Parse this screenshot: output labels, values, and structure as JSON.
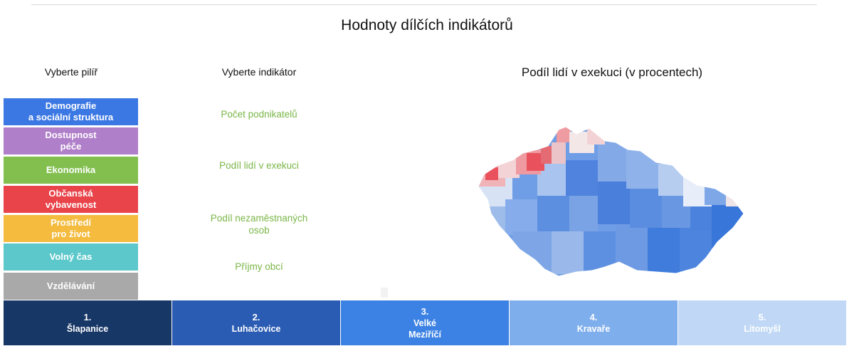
{
  "header": {
    "title": "Hodnoty dílčích indikátorů"
  },
  "labels": {
    "pillar": "Vyberte pilíř",
    "indicator": "Vyberte indikátor"
  },
  "pillars": [
    {
      "label": "Demografie\na sociální struktura",
      "color": "#3b78e3"
    },
    {
      "label": "Dostupnost\npéče",
      "color": "#b07fc9"
    },
    {
      "label": "Ekonomika",
      "color": "#82bf4f"
    },
    {
      "label": "Občanská\nvybavenost",
      "color": "#e8444a"
    },
    {
      "label": "Prostředí\npro život",
      "color": "#f4bb3f"
    },
    {
      "label": "Volný čas",
      "color": "#5dc8cb"
    },
    {
      "label": "Vzdělávání",
      "color": "#a9a9a9"
    }
  ],
  "indicators": [
    {
      "label": "Počet podnikatelů"
    },
    {
      "label": "Podíl lidí v exekuci"
    },
    {
      "label": "Podíl nezaměstnaných\nosob"
    },
    {
      "label": "Příjmy obcí"
    }
  ],
  "map": {
    "title": "Podíl lidí v exekuci (v procentech)",
    "low_color": "#3f7fe0",
    "high_color": "#e9525d"
  },
  "ranking": [
    {
      "rank": "1.",
      "name": "Šlapanice",
      "color": "#173766"
    },
    {
      "rank": "2.",
      "name": "Luhačovice",
      "color": "#2b5cb3"
    },
    {
      "rank": "3.",
      "name": "Velké\nMeziříčí",
      "color": "#3c82e4"
    },
    {
      "rank": "4.",
      "name": "Kravaře",
      "color": "#7faeec"
    },
    {
      "rank": "5.",
      "name": "Litomyšl",
      "color": "#c0d8f5"
    }
  ]
}
